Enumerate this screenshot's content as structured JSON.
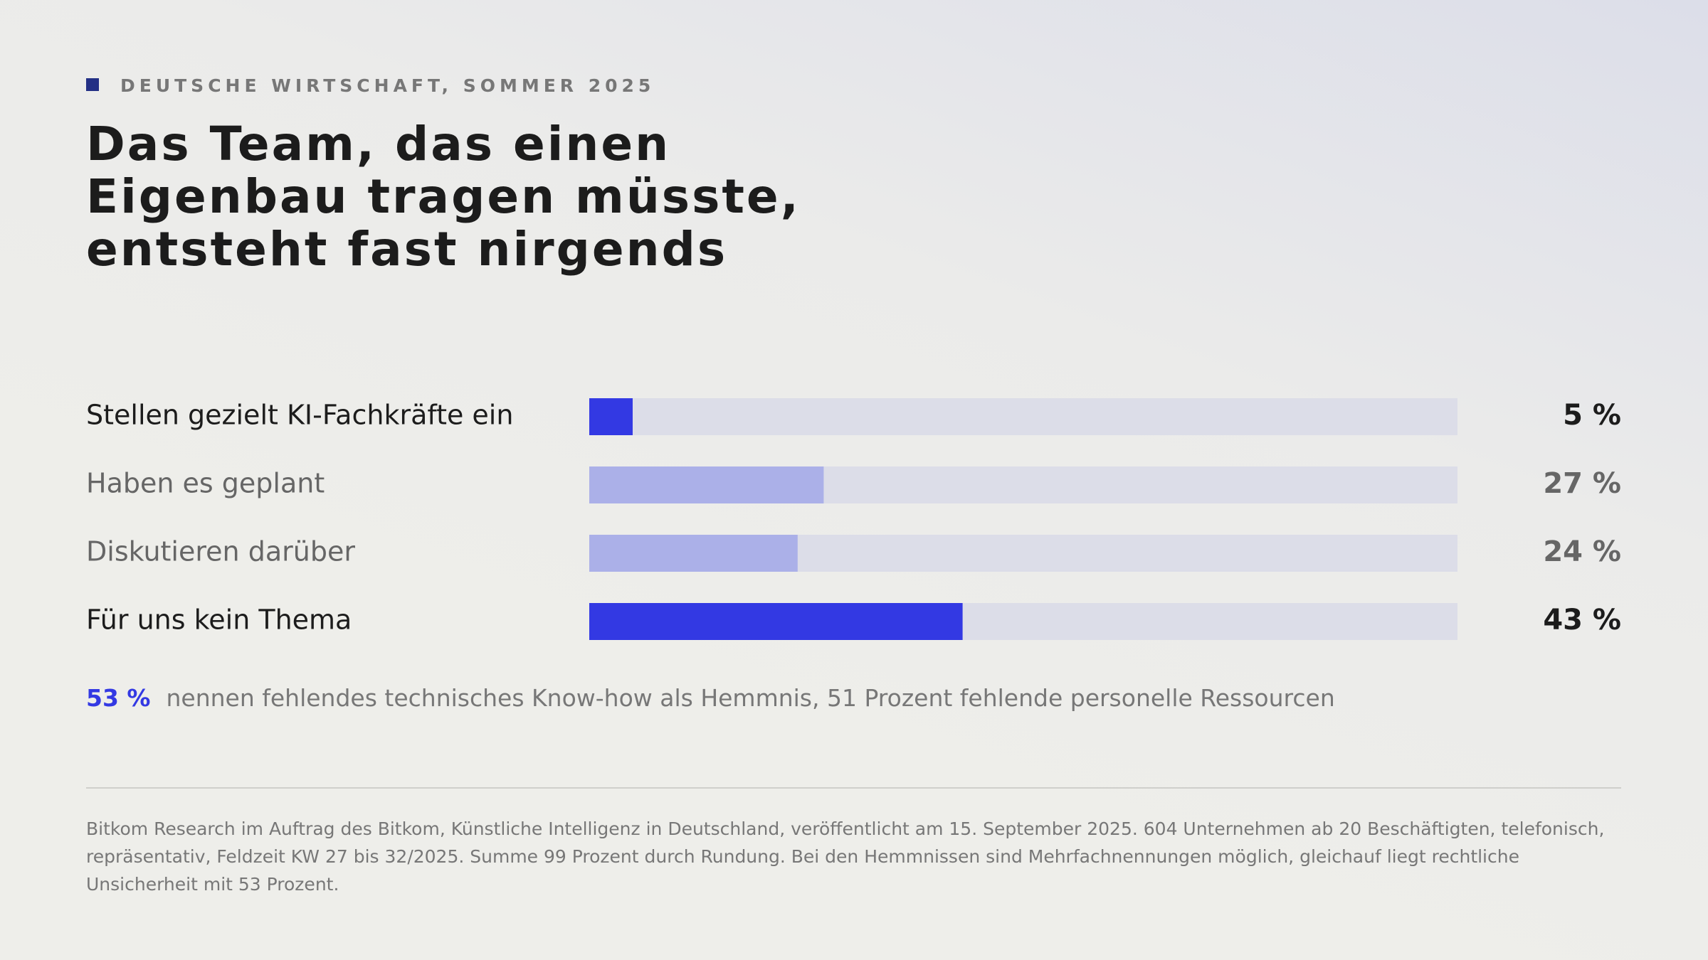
{
  "header": {
    "kicker": "DEUTSCHE WIRTSCHAFT, SOMMER 2025"
  },
  "chart_data": {
    "type": "bar",
    "orientation": "horizontal",
    "title": "Das Team, das einen Eigenbau tragen müsste, entsteht fast nirgends",
    "categories": [
      "Stellen gezielt KI-Fachkräfte ein",
      "Haben es geplant",
      "Diskutieren darüber",
      "Für uns kein Thema"
    ],
    "values": [
      5,
      27,
      24,
      43
    ],
    "value_labels": [
      "5 %",
      "27 %",
      "24 %",
      "43 %"
    ],
    "colors": [
      "#3339e3",
      "#abb0e8",
      "#abb0e8",
      "#3339e3"
    ],
    "label_colors": [
      "#1c1c1c",
      "#666666",
      "#666666",
      "#1c1c1c"
    ],
    "track_color": "#dcdde8",
    "xlim": [
      0,
      100
    ]
  },
  "note": {
    "highlight": "53 %",
    "text": "nennen fehlendes technisches Know-how als Hemmnis, 51 Prozent fehlende personelle Ressourcen"
  },
  "footnote": "Bitkom Research im Auftrag des Bitkom, Künstliche Intelligenz in Deutschland, veröffentlicht am 15. September 2025. 604 Unternehmen ab 20 Beschäftigten, telefonisch, repräsentativ, Feldzeit KW 27 bis 32/2025. Summe 99 Prozent durch Rundung. Bei den Hemmnissen sind Mehrfachnennungen möglich, gleichauf liegt rechtliche Unsicherheit mit 53 Prozent."
}
